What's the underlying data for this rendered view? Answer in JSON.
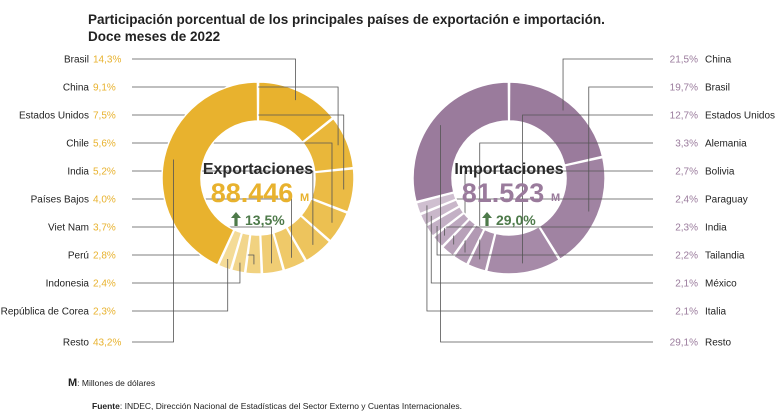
{
  "title_line1": "Participación porcentual de los principales países de exportación e importación.",
  "title_line2": "Doce meses de 2022",
  "footnote": {
    "unit_symbol": "M",
    "unit_text": ": Millones de dólares"
  },
  "source": {
    "label": "Fuente",
    "text": ": INDEC, Dirección Nacional de Estadísticas del Sector Externo y Cuentas Internacionales."
  },
  "colors": {
    "export_main": "#E8B22E",
    "export_light": "#F5DFA3",
    "import_main": "#9A7B9C",
    "import_light": "#D5C6D6",
    "up_arrow": "#4E7A4A",
    "leader": "#555555"
  },
  "chart_data": [
    {
      "type": "pie",
      "variant": "donut",
      "center_title": "Exportaciones",
      "center_value": "88.446",
      "center_unit": "M",
      "change": "13,5%",
      "change_direction": "up",
      "categories": [
        "Brasil",
        "China",
        "Estados Unidos",
        "Chile",
        "India",
        "Países Bajos",
        "Viet Nam",
        "Perú",
        "Indonesia",
        "República de Corea",
        "Resto"
      ],
      "labels": [
        "14,3%",
        "9,1%",
        "7,5%",
        "5,6%",
        "5,2%",
        "4,0%",
        "3,7%",
        "2,8%",
        "2,4%",
        "2,3%",
        "43,2%"
      ],
      "values": [
        14.3,
        9.1,
        7.5,
        5.6,
        5.2,
        4.0,
        3.7,
        2.8,
        2.4,
        2.3,
        43.2
      ],
      "legend_side": "left"
    },
    {
      "type": "pie",
      "variant": "donut",
      "center_title": "Importaciones",
      "center_value": "81.523",
      "center_unit": "M",
      "change": "29,0%",
      "change_direction": "up",
      "categories": [
        "China",
        "Brasil",
        "Estados Unidos",
        "Alemania",
        "Bolivia",
        "Paraguay",
        "India",
        "Tailandia",
        "México",
        "Italia",
        "Resto"
      ],
      "labels": [
        "21,5%",
        "19,7%",
        "12,7%",
        "3,3%",
        "2,7%",
        "2,4%",
        "2,3%",
        "2,2%",
        "2,1%",
        "2,1%",
        "29,1%"
      ],
      "values": [
        21.5,
        19.7,
        12.7,
        3.3,
        2.7,
        2.4,
        2.3,
        2.2,
        2.1,
        2.1,
        29.1
      ],
      "legend_side": "right"
    }
  ]
}
